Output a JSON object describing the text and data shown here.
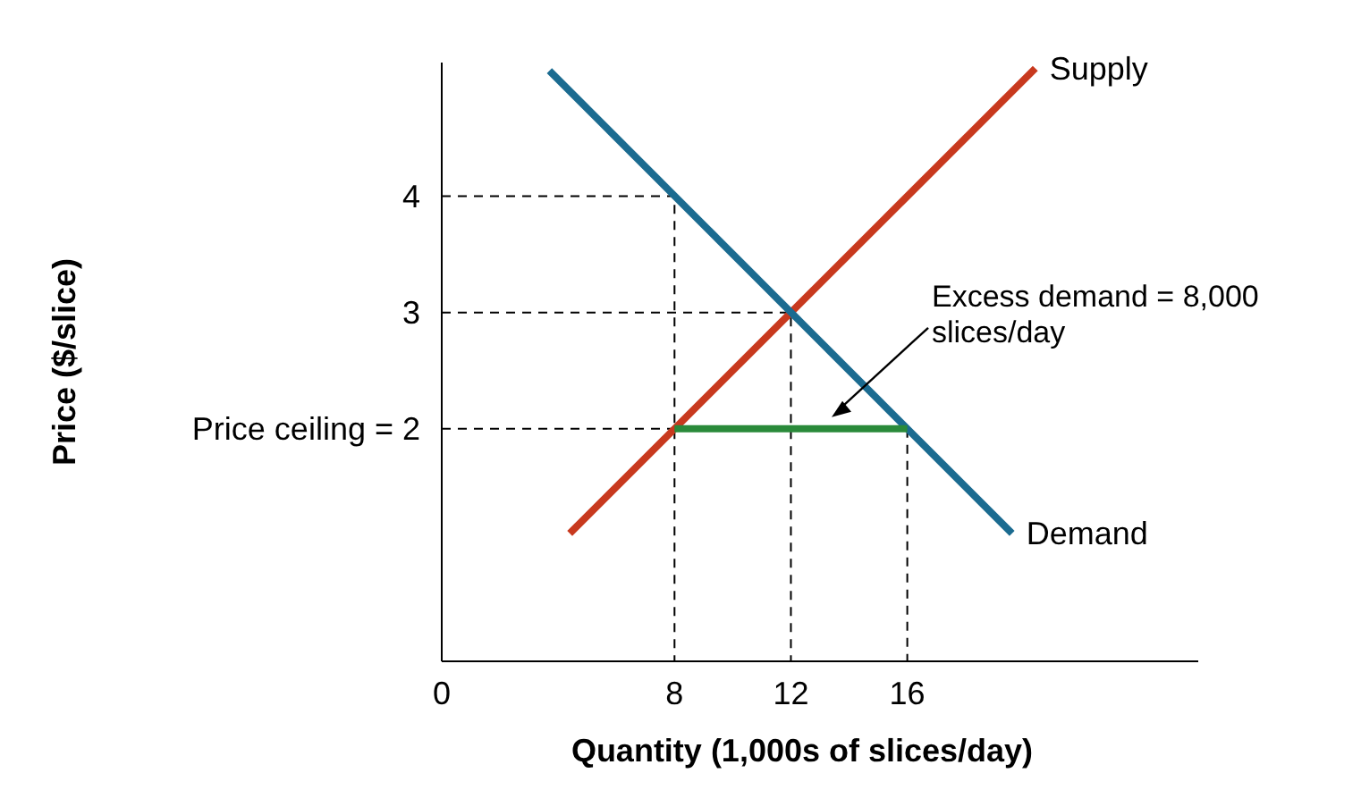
{
  "chart_data": {
    "type": "line",
    "xlabel": "Quantity (1,000s of slices/day)",
    "ylabel": "Price ($/slice)",
    "xlim": [
      0,
      26
    ],
    "ylim": [
      0,
      5.15
    ],
    "xticks": [
      0,
      8,
      12,
      16
    ],
    "yticks": [
      {
        "value": 2,
        "label": "Price ceiling = 2"
      },
      3,
      4
    ],
    "grid": false,
    "marker": "none",
    "series": [
      {
        "name": "Supply",
        "color": "#c8391e",
        "x": [
          4.4,
          20.4
        ],
        "values": [
          1.1,
          5.1
        ]
      },
      {
        "name": "Demand",
        "color": "#1b6b90",
        "x": [
          3.7,
          19.6
        ],
        "values": [
          5.08,
          1.1
        ]
      },
      {
        "color": "#000000",
        "line_style": "dashed",
        "x": [
          0,
          8,
          8
        ],
        "values": [
          4,
          4,
          0
        ]
      },
      {
        "color": "#000000",
        "line_style": "dashed",
        "x": [
          0,
          12,
          12
        ],
        "values": [
          3,
          3,
          0
        ]
      },
      {
        "color": "#000000",
        "line_style": "dashed",
        "x": [
          0,
          8
        ],
        "values": [
          2,
          2
        ]
      },
      {
        "color": "#000000",
        "line_style": "dashed",
        "x": [
          16,
          16
        ],
        "values": [
          2,
          0
        ]
      },
      {
        "color": "#2a8a3a",
        "x": [
          8,
          16
        ],
        "values": [
          2,
          2
        ]
      }
    ],
    "annotations": [
      {
        "text": "Excess demand = 8,000 slices/day",
        "x": 13.4,
        "y": 2.1
      }
    ]
  }
}
